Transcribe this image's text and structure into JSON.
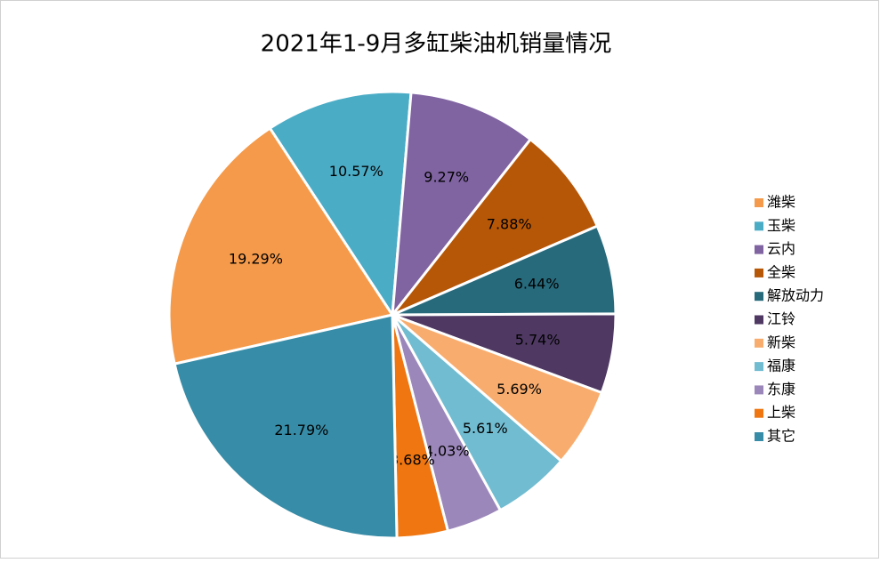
{
  "chart_data": {
    "type": "pie",
    "title": "2021年1-9月多缸柴油机销量情况",
    "categories": [
      "潍柴",
      "玉柴",
      "云内",
      "全柴",
      "解放动力",
      "江铃",
      "新柴",
      "福康",
      "东康",
      "上柴",
      "其它"
    ],
    "values": [
      19.29,
      10.57,
      9.27,
      7.88,
      6.44,
      5.74,
      5.69,
      5.61,
      4.03,
      3.68,
      21.79
    ],
    "value_labels": [
      "19.29%",
      "10.57%",
      "9.27%",
      "7.88%",
      "6.44%",
      "5.74%",
      "5.69%",
      "5.61%",
      "4.03%",
      "3.68%",
      "21.79%"
    ],
    "colors": [
      "#f59a4a",
      "#4bacc6",
      "#8064a2",
      "#b65708",
      "#276a7c",
      "#4f3963",
      "#f8ad6e",
      "#71bcd1",
      "#9c87ba",
      "#ef7610",
      "#378ca7"
    ],
    "legend": "right"
  }
}
